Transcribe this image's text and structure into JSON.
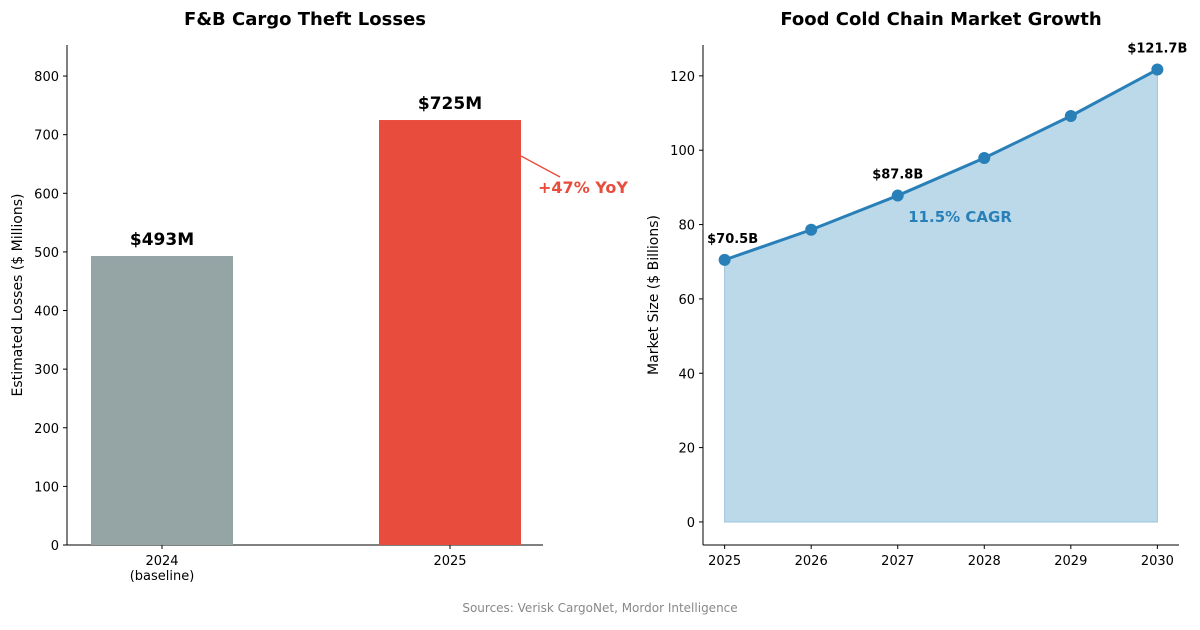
{
  "chart_data": [
    {
      "type": "bar",
      "title": "F&B Cargo Theft Losses",
      "xlabel": "",
      "ylabel": "Estimated Losses ($ Millions)",
      "categories": [
        "2024\n(baseline)",
        "2025"
      ],
      "values": [
        493,
        725
      ],
      "data_labels": [
        "$493M",
        "$725M"
      ],
      "colors": [
        "#95a5a6",
        "#e74c3c"
      ],
      "ylim": [
        0,
        853
      ],
      "yticks": [
        0,
        100,
        200,
        300,
        400,
        500,
        600,
        700,
        800
      ],
      "annotation": {
        "text": "+47% YoY",
        "color": "#e74c3c"
      },
      "grid": false
    },
    {
      "type": "area",
      "title": "Food Cold Chain Market Growth",
      "xlabel": "",
      "ylabel": "Market Size ($ Billions)",
      "x": [
        2025,
        2026,
        2027,
        2028,
        2029,
        2030
      ],
      "values": [
        70.5,
        78.6,
        87.8,
        97.9,
        109.2,
        121.7
      ],
      "point_labels": [
        {
          "index": 0,
          "text": "$70.5B"
        },
        {
          "index": 2,
          "text": "$87.8B"
        },
        {
          "index": 5,
          "text": "$121.7B"
        }
      ],
      "annotation": {
        "text": "11.5% CAGR",
        "color": "#2980b9"
      },
      "line_color": "#2980b9",
      "fill_color": "#bcd9ea",
      "xlim": [
        2024.75,
        2030.25
      ],
      "ylim": [
        -6.2,
        128.3
      ],
      "yticks": [
        0,
        20,
        40,
        60,
        80,
        100,
        120
      ],
      "grid": false
    }
  ],
  "footer": {
    "sources": "Sources: Verisk CargoNet, Mordor Intelligence"
  }
}
